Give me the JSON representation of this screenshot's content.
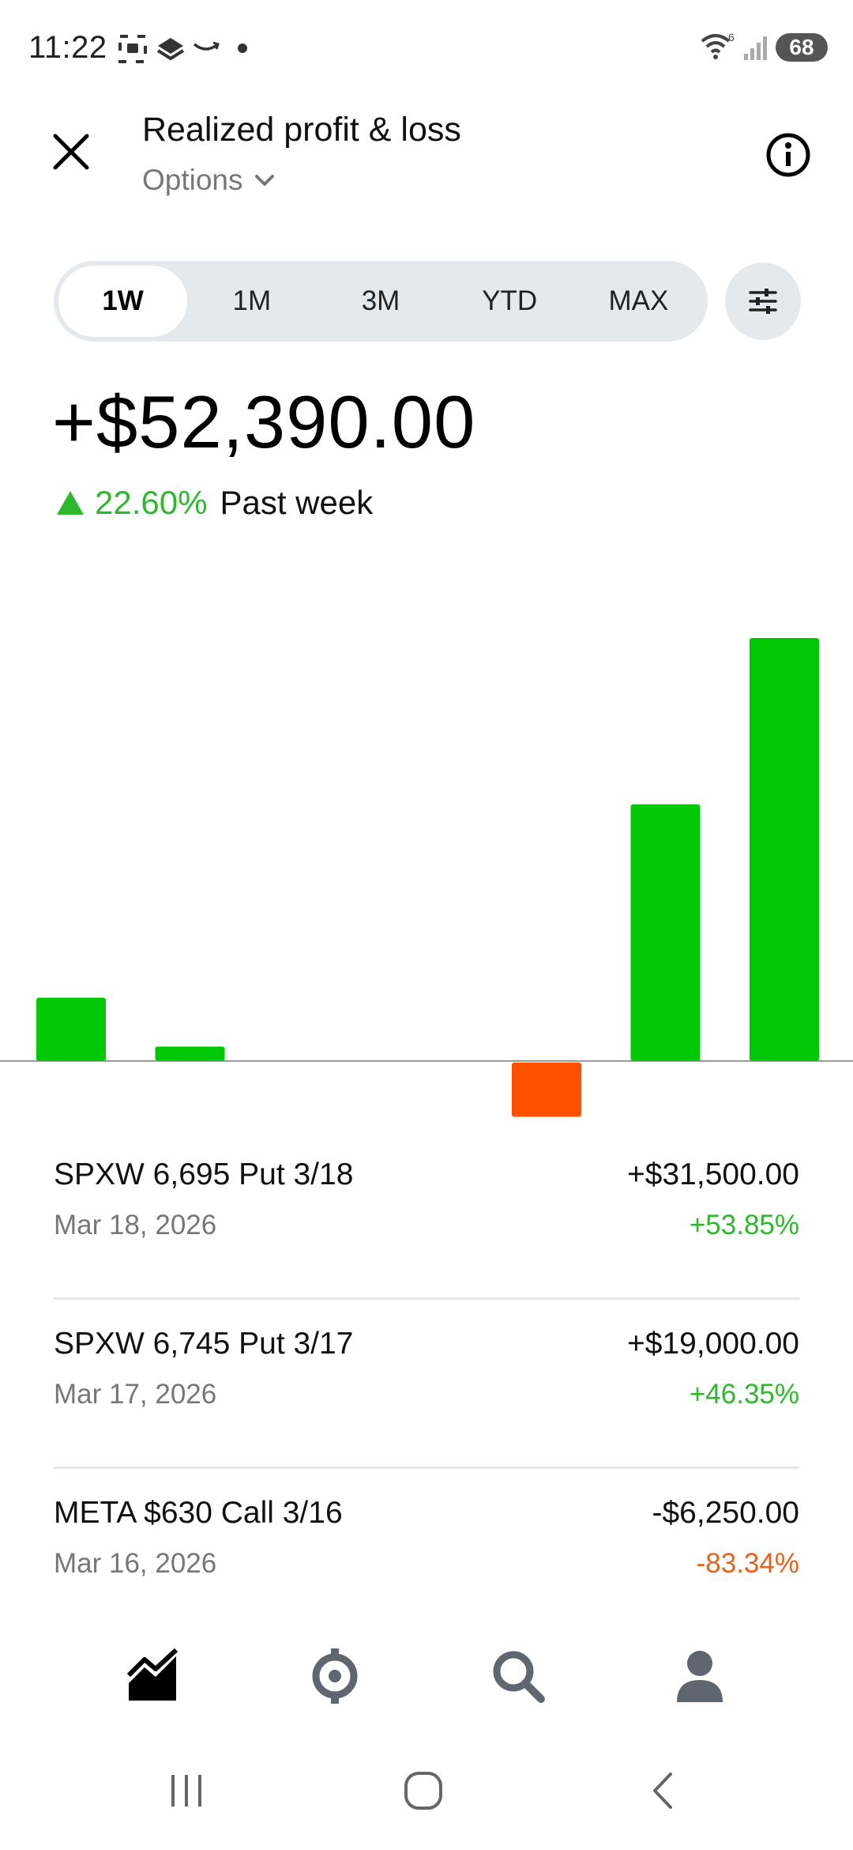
{
  "status_bar": {
    "time": "11:22",
    "battery": "68",
    "wifi_label": "6"
  },
  "header": {
    "title": "Realized profit & loss",
    "filter_label": "Options"
  },
  "range_tabs": [
    "1W",
    "1M",
    "3M",
    "YTD",
    "MAX"
  ],
  "selected_range": "1W",
  "summary": {
    "total": "+$52,390.00",
    "change_pct": "22.60%",
    "period": "Past week"
  },
  "colors": {
    "positive": "#00c805",
    "negative": "#ff5000",
    "positive_text": "#2eb82e",
    "negative_text": "#e8611c"
  },
  "chart_data": {
    "type": "bar",
    "categories": [
      "",
      "",
      "",
      "",
      "",
      "",
      ""
    ],
    "values": [
      3500,
      800,
      0,
      0,
      -3000,
      14200,
      23400
    ],
    "title": "",
    "xlabel": "",
    "ylabel": ""
  },
  "transactions": [
    {
      "name": "SPXW 6,695 Put 3/18",
      "date": "Mar 18, 2026",
      "amount": "+$31,500.00",
      "pct": "+53.85%",
      "direction": "pos"
    },
    {
      "name": "SPXW 6,745 Put 3/17",
      "date": "Mar 17, 2026",
      "amount": "+$19,000.00",
      "pct": "+46.35%",
      "direction": "pos"
    },
    {
      "name": "META $630 Call 3/16",
      "date": "Mar 16, 2026",
      "amount": "-$6,250.00",
      "pct": "-83.34%",
      "direction": "neg"
    }
  ],
  "bottom_nav": {
    "items": [
      "chart-icon",
      "crypto-icon",
      "search-icon",
      "account-icon"
    ]
  }
}
